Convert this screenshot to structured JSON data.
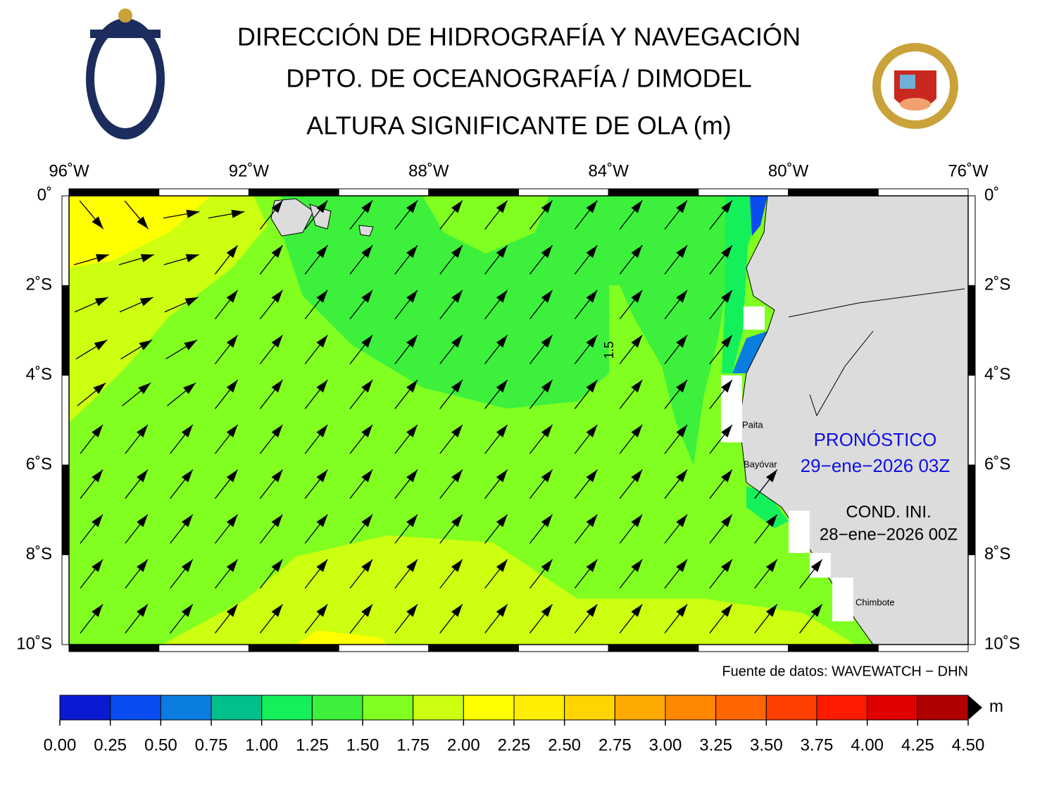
{
  "header": {
    "lines": [
      "DIRECCIÓN DE HIDROGRAFÍA Y NAVEGACIÓN",
      "DPTO. DE OCEANOGRAFÍA / DIMODEL",
      "ALTURA SIGNIFICANTE DE OLA (m)"
    ]
  },
  "map": {
    "lon_labels": [
      "96˚W",
      "92˚W",
      "88˚W",
      "84˚W",
      "80˚W",
      "76˚W"
    ],
    "lat_labels": [
      "0˚",
      "2˚S",
      "4˚S",
      "6˚S",
      "8˚S",
      "10˚S"
    ],
    "contour_label": 1.5,
    "places": [
      "Paita",
      "Bayóvar",
      "Chimbote"
    ],
    "forecast": {
      "label": "PRONÓSTICO",
      "time": "29−ene−2026 03Z"
    },
    "initial": {
      "label": "COND. INI.",
      "time": "28−ene−2026 00Z"
    },
    "source": "Fuente de datos: WAVEWATCH − DHN"
  },
  "colorbar": {
    "unit": "m",
    "ticks": [
      {
        "value": 0,
        "label": "0.00"
      },
      {
        "value": 0.25,
        "label": "0.25"
      },
      {
        "value": 0.5,
        "label": "0.50"
      },
      {
        "value": 0.75,
        "label": "0.75"
      },
      {
        "value": 1,
        "label": "1.00"
      },
      {
        "value": 1.25,
        "label": "1.25"
      },
      {
        "value": 1.5,
        "label": "1.50"
      },
      {
        "value": 1.75,
        "label": "1.75"
      },
      {
        "value": 2,
        "label": "2.00"
      },
      {
        "value": 2.25,
        "label": "2.25"
      },
      {
        "value": 2.5,
        "label": "2.50"
      },
      {
        "value": 2.75,
        "label": "2.75"
      },
      {
        "value": 3,
        "label": "3.00"
      },
      {
        "value": 3.25,
        "label": "3.25"
      },
      {
        "value": 3.5,
        "label": "3.50"
      },
      {
        "value": 3.75,
        "label": "3.75"
      },
      {
        "value": 4,
        "label": "4.00"
      },
      {
        "value": 4.25,
        "label": "4.25"
      },
      {
        "value": 4.5,
        "label": "4.50"
      }
    ],
    "colors": [
      "#0a1ad2",
      "#0a4cf0",
      "#0a7ee0",
      "#00c08c",
      "#14f05a",
      "#3cf03c",
      "#80ff20",
      "#ccff10",
      "#ffff00",
      "#ffee00",
      "#ffd400",
      "#ffaa00",
      "#ff8800",
      "#ff6600",
      "#ff4000",
      "#ff1a00",
      "#e00000",
      "#b00000"
    ]
  }
}
